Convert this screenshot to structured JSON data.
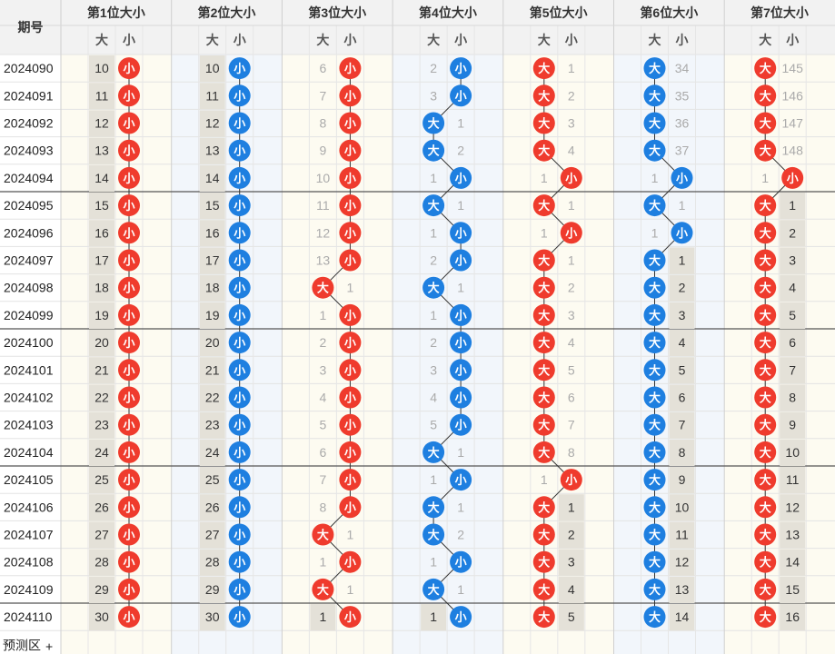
{
  "header": {
    "issue_col": "期号",
    "positions": [
      "第1位大小",
      "第2位大小",
      "第3位大小",
      "第4位大小",
      "第5位大小",
      "第6位大小",
      "第7位大小"
    ],
    "sub_big": "大",
    "sub_small": "小"
  },
  "labels": {
    "big": "大",
    "small": "小"
  },
  "footer": {
    "predict_label": "预测区",
    "add_icon": "plus-icon"
  },
  "colors": {
    "big_ball": "#ef3b2d",
    "small_ball": "#1e7fe0",
    "p4_big_ball": "#1e7fe0",
    "p6_big_ball": "#1e7fe0",
    "p7_big_ball": "#ef3b2d"
  },
  "chart_data": {
    "type": "table",
    "issues": [
      "2024090",
      "2024091",
      "2024092",
      "2024093",
      "2024094",
      "2024095",
      "2024096",
      "2024097",
      "2024098",
      "2024099",
      "2024100",
      "2024101",
      "2024102",
      "2024103",
      "2024104",
      "2024105",
      "2024106",
      "2024107",
      "2024108",
      "2024109",
      "2024110"
    ],
    "positions": [
      {
        "name": "第1位大小",
        "big_ball_color": "#ef3b2d",
        "small_ball_color": "#ef3b2d",
        "results": [
          "小",
          "小",
          "小",
          "小",
          "小",
          "小",
          "小",
          "小",
          "小",
          "小",
          "小",
          "小",
          "小",
          "小",
          "小",
          "小",
          "小",
          "小",
          "小",
          "小",
          "小"
        ],
        "big_miss": [
          10,
          11,
          12,
          13,
          14,
          15,
          16,
          17,
          18,
          19,
          20,
          21,
          22,
          23,
          24,
          25,
          26,
          27,
          28,
          29,
          30
        ]
      },
      {
        "name": "第2位大小",
        "big_ball_color": "#1e7fe0",
        "small_ball_color": "#1e7fe0",
        "results": [
          "小",
          "小",
          "小",
          "小",
          "小",
          "小",
          "小",
          "小",
          "小",
          "小",
          "小",
          "小",
          "小",
          "小",
          "小",
          "小",
          "小",
          "小",
          "小",
          "小",
          "小"
        ],
        "big_miss": [
          10,
          11,
          12,
          13,
          14,
          15,
          16,
          17,
          18,
          19,
          20,
          21,
          22,
          23,
          24,
          25,
          26,
          27,
          28,
          29,
          30
        ]
      },
      {
        "name": "第3位大小",
        "big_ball_color": "#ef3b2d",
        "small_ball_color": "#ef3b2d",
        "results": [
          "小",
          "小",
          "小",
          "小",
          "小",
          "小",
          "小",
          "小",
          "大",
          "小",
          "小",
          "小",
          "小",
          "小",
          "小",
          "小",
          "小",
          "大",
          "小",
          "大",
          "小"
        ],
        "big_miss": [
          6,
          7,
          8,
          9,
          10,
          11,
          12,
          13,
          null,
          1,
          2,
          3,
          4,
          5,
          6,
          7,
          8,
          null,
          1,
          null,
          1
        ],
        "small_miss": [
          null,
          null,
          null,
          null,
          null,
          null,
          null,
          null,
          1,
          null,
          null,
          null,
          null,
          null,
          null,
          null,
          null,
          1,
          null,
          1,
          null
        ]
      },
      {
        "name": "第4位大小",
        "big_ball_color": "#1e7fe0",
        "small_ball_color": "#1e7fe0",
        "results": [
          "小",
          "小",
          "大",
          "大",
          "小",
          "大",
          "小",
          "小",
          "大",
          "小",
          "小",
          "小",
          "小",
          "小",
          "大",
          "小",
          "大",
          "大",
          "小",
          "大",
          "小"
        ],
        "big_miss": [
          2,
          3,
          null,
          null,
          1,
          null,
          1,
          2,
          null,
          1,
          2,
          3,
          4,
          5,
          null,
          1,
          null,
          null,
          1,
          null,
          1
        ],
        "small_miss": [
          null,
          null,
          1,
          2,
          null,
          1,
          null,
          null,
          1,
          null,
          null,
          null,
          null,
          null,
          1,
          null,
          1,
          2,
          null,
          1,
          null
        ]
      },
      {
        "name": "第5位大小",
        "big_ball_color": "#ef3b2d",
        "small_ball_color": "#ef3b2d",
        "results": [
          "大",
          "大",
          "大",
          "大",
          "小",
          "大",
          "小",
          "大",
          "大",
          "大",
          "大",
          "大",
          "大",
          "大",
          "大",
          "小",
          "大",
          "大",
          "大",
          "大",
          "大"
        ],
        "big_miss": [
          null,
          null,
          null,
          null,
          1,
          null,
          1,
          null,
          null,
          null,
          null,
          null,
          null,
          null,
          null,
          1,
          null,
          null,
          null,
          null,
          null
        ],
        "small_miss": [
          1,
          2,
          3,
          4,
          null,
          1,
          null,
          1,
          2,
          3,
          4,
          5,
          6,
          7,
          8,
          null,
          1,
          2,
          3,
          4,
          5
        ]
      },
      {
        "name": "第6位大小",
        "big_ball_color": "#1e7fe0",
        "small_ball_color": "#1e7fe0",
        "results": [
          "大",
          "大",
          "大",
          "大",
          "小",
          "大",
          "小",
          "大",
          "大",
          "大",
          "大",
          "大",
          "大",
          "大",
          "大",
          "大",
          "大",
          "大",
          "大",
          "大",
          "大"
        ],
        "big_miss": [
          null,
          null,
          null,
          null,
          1,
          null,
          1,
          null,
          null,
          null,
          null,
          null,
          null,
          null,
          null,
          null,
          null,
          null,
          null,
          null,
          null
        ],
        "small_miss": [
          34,
          35,
          36,
          37,
          null,
          1,
          null,
          1,
          2,
          3,
          4,
          5,
          6,
          7,
          8,
          9,
          10,
          11,
          12,
          13,
          14
        ]
      },
      {
        "name": "第7位大小",
        "big_ball_color": "#ef3b2d",
        "small_ball_color": "#ef3b2d",
        "results": [
          "大",
          "大",
          "大",
          "大",
          "小",
          "大",
          "大",
          "大",
          "大",
          "大",
          "大",
          "大",
          "大",
          "大",
          "大",
          "大",
          "大",
          "大",
          "大",
          "大",
          "大"
        ],
        "big_miss": [
          null,
          null,
          null,
          null,
          1,
          null,
          null,
          null,
          null,
          null,
          null,
          null,
          null,
          null,
          null,
          null,
          null,
          null,
          null,
          null,
          null
        ],
        "small_miss": [
          145,
          146,
          147,
          148,
          null,
          1,
          2,
          3,
          4,
          5,
          6,
          7,
          8,
          9,
          10,
          11,
          12,
          13,
          14,
          15,
          16
        ]
      }
    ]
  }
}
